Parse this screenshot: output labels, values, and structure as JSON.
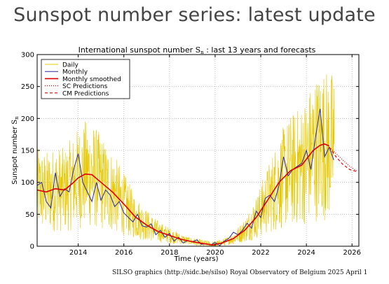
{
  "page": {
    "title": "Sunspot number series: latest update"
  },
  "credit": "SILSO graphics (http://sidc.be/silso)  Royal Observatory of Belgium  2025 April 1",
  "colors": {
    "daily": "#e6c800",
    "monthly": "#2b2b9e",
    "smoothed": "#dd0000",
    "sc": "#dd0000",
    "cm": "#dd0000",
    "grid": "#b0b0b0"
  },
  "chart_data": {
    "type": "line",
    "title": "International sunspot number Sₙ : last 13 years and forecasts",
    "title_main": "International sunspot number ",
    "title_symbol": "S",
    "title_sub": "n",
    "title_tail": " : last 13 years and forecasts",
    "xlabel": "Time (years)",
    "ylabel": "Sunspot number ",
    "ylabel_symbol": "S",
    "ylabel_sub": "n",
    "xlim": [
      2012.2,
      2026.3
    ],
    "ylim": [
      0,
      300
    ],
    "x_ticks": [
      2014,
      2016,
      2018,
      2020,
      2022,
      2024,
      2026
    ],
    "x_tick_labels": [
      "2014",
      "2016",
      "2018",
      "2020",
      "2022",
      "2024",
      "2026"
    ],
    "y_ticks": [
      0,
      50,
      100,
      150,
      200,
      250,
      300
    ],
    "y_tick_labels": [
      "0",
      "50",
      "100",
      "150",
      "200",
      "250",
      "300"
    ],
    "grid": true,
    "legend_position": "top-left",
    "legend": [
      {
        "label": "Daily",
        "style": "daily"
      },
      {
        "label": "Monthly",
        "style": "monthly"
      },
      {
        "label": "Monthly smoothed",
        "style": "smoothed"
      },
      {
        "label": "SC Predictions",
        "style": "sc"
      },
      {
        "label": "CM Predictions",
        "style": "cm"
      }
    ],
    "smoothed": {
      "x": [
        2012.2,
        2012.6,
        2013.0,
        2013.4,
        2013.8,
        2014.0,
        2014.3,
        2014.6,
        2015.0,
        2015.5,
        2016.0,
        2016.5,
        2017.0,
        2017.5,
        2018.0,
        2018.5,
        2019.0,
        2019.5,
        2019.9,
        2020.3,
        2020.8,
        2021.3,
        2021.8,
        2022.3,
        2022.8,
        2023.3,
        2023.8,
        2024.3,
        2024.6,
        2024.8,
        2025.0
      ],
      "y": [
        88,
        85,
        90,
        88,
        100,
        107,
        113,
        112,
        100,
        85,
        66,
        46,
        33,
        23,
        17,
        11,
        7,
        4,
        2,
        5,
        12,
        25,
        45,
        72,
        100,
        118,
        127,
        150,
        158,
        160,
        157
      ]
    },
    "monthly": {
      "x": [
        2012.2,
        2012.4,
        2012.6,
        2012.8,
        2013.0,
        2013.2,
        2013.4,
        2013.6,
        2013.8,
        2014.0,
        2014.2,
        2014.4,
        2014.6,
        2014.8,
        2015.0,
        2015.2,
        2015.4,
        2015.6,
        2015.8,
        2016.0,
        2016.2,
        2016.4,
        2016.6,
        2016.8,
        2017.0,
        2017.2,
        2017.4,
        2017.6,
        2017.8,
        2018.0,
        2018.2,
        2018.4,
        2018.6,
        2018.8,
        2019.0,
        2019.2,
        2019.4,
        2019.6,
        2019.8,
        2020.0,
        2020.2,
        2020.4,
        2020.6,
        2020.8,
        2021.0,
        2021.2,
        2021.4,
        2021.6,
        2021.8,
        2022.0,
        2022.2,
        2022.4,
        2022.6,
        2022.8,
        2023.0,
        2023.2,
        2023.4,
        2023.6,
        2023.8,
        2024.0,
        2024.2,
        2024.4,
        2024.6,
        2024.8,
        2025.0,
        2025.2
      ],
      "y": [
        95,
        100,
        70,
        60,
        115,
        78,
        90,
        85,
        120,
        145,
        100,
        85,
        70,
        100,
        72,
        88,
        80,
        62,
        70,
        52,
        45,
        38,
        50,
        32,
        30,
        35,
        18,
        25,
        14,
        20,
        8,
        14,
        5,
        9,
        7,
        10,
        3,
        4,
        2,
        6,
        1,
        8,
        12,
        22,
        18,
        25,
        36,
        28,
        55,
        45,
        75,
        80,
        70,
        95,
        140,
        110,
        120,
        125,
        130,
        150,
        120,
        170,
        215,
        140,
        155,
        135
      ]
    },
    "sc_predictions": {
      "x": [
        2025.0,
        2025.3,
        2025.6,
        2025.9,
        2026.2
      ],
      "y": [
        155,
        145,
        135,
        125,
        118
      ]
    },
    "cm_predictions": {
      "x": [
        2025.0,
        2025.3,
        2025.6,
        2025.9,
        2026.2
      ],
      "y": [
        155,
        140,
        128,
        120,
        117
      ]
    }
  }
}
